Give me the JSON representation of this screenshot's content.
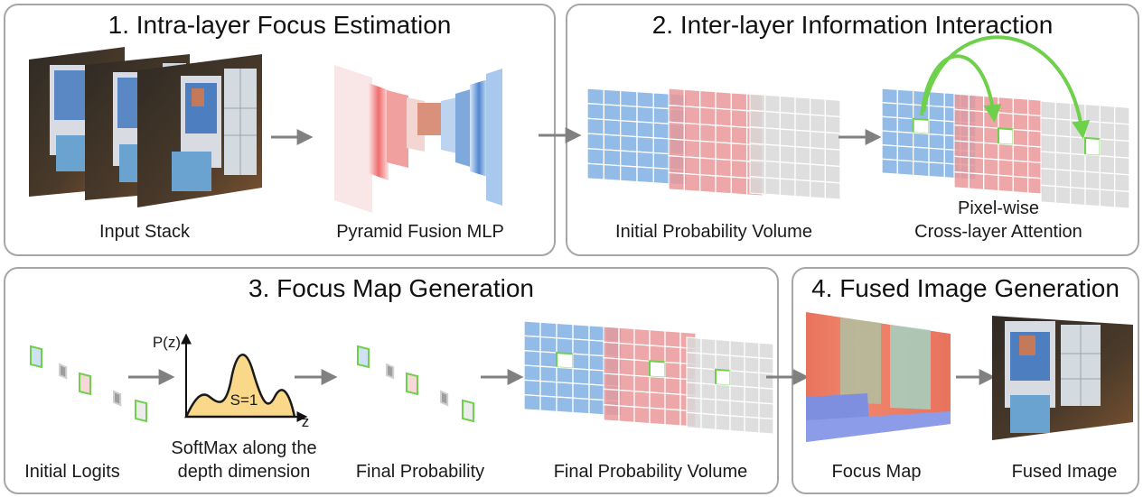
{
  "panels": [
    {
      "title": "1. Intra-layer Focus Estimation",
      "captions": [
        "Input Stack",
        "Pyramid Fusion MLP"
      ]
    },
    {
      "title": "2. Inter-layer Information Interaction",
      "captions": [
        "Initial Probability Volume",
        "Pixel-wise",
        "Cross-layer Attention"
      ]
    },
    {
      "title": "3. Focus Map Generation",
      "captions": [
        "Initial Logits",
        "SoftMax along the",
        "depth dimension",
        "Final Probability",
        "Final Probability Volume"
      ]
    },
    {
      "title": "4. Fused Image Generation",
      "captions": [
        "Focus Map",
        "Fused Image"
      ]
    }
  ],
  "softmax_plot": {
    "y_label": "P(z)",
    "x_label": "z",
    "area_label": "S=1"
  },
  "colors": {
    "blue": "#5b9bd5",
    "red": "#e8787a",
    "grey": "#c9c9c9",
    "green": "#6fd04c",
    "arrow": "#808080",
    "border": "#a6a6a6"
  }
}
